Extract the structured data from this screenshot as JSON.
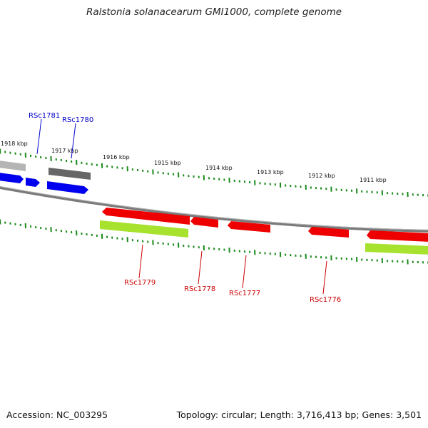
{
  "title": "Ralstonia solanacearum GMI1000, complete genome",
  "footer": {
    "accession": "Accession: NC_003295",
    "topology": "Topology: circular; Length: 3,716,413 bp; Genes: 3,501"
  },
  "colors": {
    "forward_gene": "#0000ff",
    "reverse_gene": "#ff0000",
    "rna_feature_gray": "#777777",
    "cds_green": "#a6e22e",
    "tick": "#1a8a1a",
    "backbone": "#808080",
    "forward_label": "#0000cc",
    "reverse_label": "#cc0000"
  },
  "scale_labels": [
    "1918 kbp",
    "1917 kbp",
    "1916 kbp",
    "1915 kbp",
    "1914 kbp",
    "1913 kbp",
    "1912 kbp",
    "1911 kbp"
  ],
  "gene_labels": {
    "forward": [
      "RSc1781",
      "RSc1780"
    ],
    "reverse": [
      "RSc1779",
      "RSc1778",
      "RSc1777",
      "RSc1776"
    ]
  }
}
